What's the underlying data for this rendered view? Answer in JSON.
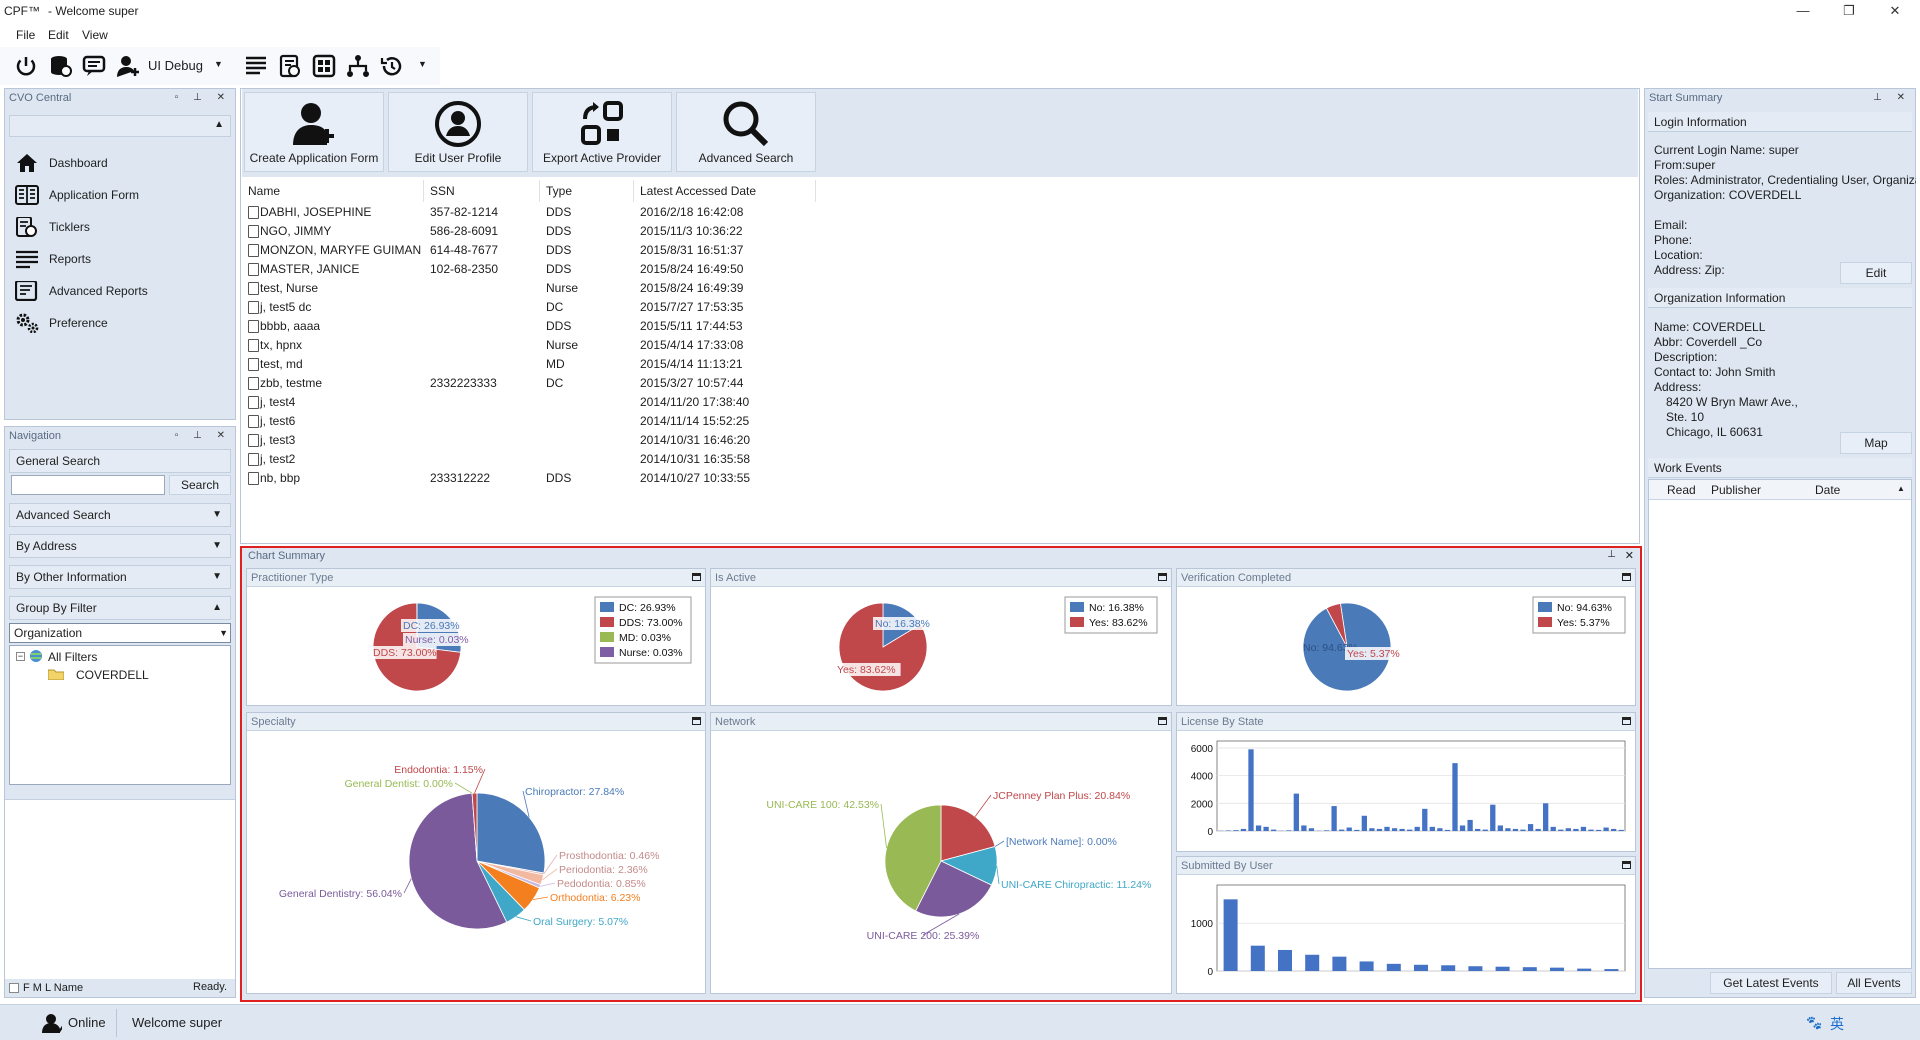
{
  "window": {
    "logo": "CPF™",
    "title": "-  Welcome super",
    "controls": [
      "—",
      "❐",
      "✕"
    ]
  },
  "menu": [
    "File",
    "Edit",
    "View"
  ],
  "toolbar": {
    "debug_label": "UI Debug"
  },
  "cvo": {
    "title": "CVO Central",
    "items": [
      {
        "label": "Dashboard",
        "icon": "home-icon"
      },
      {
        "label": "Application Form",
        "icon": "book-icon"
      },
      {
        "label": "Ticklers",
        "icon": "ticklers-icon"
      },
      {
        "label": "Reports",
        "icon": "reports-icon"
      },
      {
        "label": "Advanced Reports",
        "icon": "advanced-reports-icon"
      },
      {
        "label": "Preference",
        "icon": "gears-icon"
      }
    ]
  },
  "navigation": {
    "title": "Navigation",
    "general_search": "General Search",
    "search_button": "Search",
    "sections": [
      "Advanced Search",
      "By Address",
      "By Other Information",
      "Group By Filter"
    ],
    "group_select": "Organization",
    "tree": [
      "All Filters",
      "COVERDELL"
    ],
    "fml_label": "F M L Name",
    "ready": "Ready."
  },
  "actions": [
    "Create Application Form",
    "Edit User Profile",
    "Export Active Provider",
    "Advanced Search"
  ],
  "grid": {
    "columns": [
      "Name",
      "SSN",
      "Type",
      "Latest Accessed Date"
    ],
    "rows": [
      [
        "DABHI, JOSEPHINE",
        "357-82-1214",
        "DDS",
        "2016/2/18 16:42:08"
      ],
      [
        "NGO, JIMMY",
        "586-28-6091",
        "DDS",
        "2015/11/3 10:36:22"
      ],
      [
        "MONZON, MARYFE GUIMAN",
        "614-48-7677",
        "DDS",
        "2015/8/31 16:51:37"
      ],
      [
        "MASTER, JANICE",
        "102-68-2350",
        "DDS",
        "2015/8/24 16:49:50"
      ],
      [
        "test, Nurse",
        "",
        "Nurse",
        "2015/8/24 16:49:39"
      ],
      [
        "j, test5 dc",
        "",
        "DC",
        "2015/7/27 17:53:35"
      ],
      [
        "bbbb, aaaa",
        "",
        "DDS",
        "2015/5/11 17:44:53"
      ],
      [
        "tx, hpnx",
        "",
        "Nurse",
        "2015/4/14 17:33:08"
      ],
      [
        "test, md",
        "",
        "MD",
        "2015/4/14 11:13:21"
      ],
      [
        "zbb, testme",
        "2332223333",
        "DC",
        "2015/3/27 10:57:44"
      ],
      [
        "j, test4",
        "",
        "",
        "2014/11/20 17:38:40"
      ],
      [
        "j, test6",
        "",
        "",
        "2014/11/14 15:52:25"
      ],
      [
        "j, test3",
        "",
        "",
        "2014/10/31 16:46:20"
      ],
      [
        "j, test2",
        "",
        "",
        "2014/10/31 16:35:58"
      ],
      [
        "nb, bbp",
        "233312222",
        "DDS",
        "2014/10/27 10:33:55"
      ]
    ]
  },
  "chart_summary": {
    "title": "Chart Summary"
  },
  "panels": {
    "practitioner": "Practitioner Type",
    "active": "Is Active",
    "verification": "Verification Completed",
    "specialty": "Specialty",
    "network": "Network",
    "license": "License By State",
    "submitted": "Submitted By User"
  },
  "chart_data": [
    {
      "type": "pie",
      "title": "Practitioner Type",
      "slices": [
        {
          "label": "DC: 26.93%",
          "value": 26.93,
          "color": "#4a7ab8"
        },
        {
          "label": "DDS: 73.00%",
          "value": 73.0,
          "color": "#c0474a"
        },
        {
          "label": "MD: 0.03%",
          "value": 0.03,
          "color": "#98b954"
        },
        {
          "label": "Nurse: 0.03%",
          "value": 0.03,
          "color": "#7e5fa3"
        }
      ]
    },
    {
      "type": "pie",
      "title": "Is Active",
      "slices": [
        {
          "label": "No: 16.38%",
          "value": 16.38,
          "color": "#4a7ab8"
        },
        {
          "label": "Yes: 83.62%",
          "value": 83.62,
          "color": "#c0474a"
        }
      ]
    },
    {
      "type": "pie",
      "title": "Verification Completed",
      "slices": [
        {
          "label": "No: 94.63%",
          "value": 94.63,
          "color": "#4a7ab8"
        },
        {
          "label": "Yes: 5.37%",
          "value": 5.37,
          "color": "#c0474a"
        }
      ]
    },
    {
      "type": "pie",
      "title": "Specialty",
      "slices": [
        {
          "label": "Chiropractor: 27.84%",
          "value": 27.84,
          "color": "#4a7ab8"
        },
        {
          "label": "Prosthodontia: 0.46%",
          "value": 0.46,
          "color": "#e2b3b3"
        },
        {
          "label": "Periodontia: 2.36%",
          "value": 2.36,
          "color": "#f2b8a0"
        },
        {
          "label": "Pedodontia: 0.85%",
          "value": 0.85,
          "color": "#c9b8e0"
        },
        {
          "label": "Orthodontia: 6.23%",
          "value": 6.23,
          "color": "#f47f1f"
        },
        {
          "label": "Oral Surgery: 5.07%",
          "value": 5.07,
          "color": "#3fa7c7"
        },
        {
          "label": "General Dentistry: 56.04%",
          "value": 56.04,
          "color": "#7b5a9c"
        },
        {
          "label": "General Dentist: 0.00%",
          "value": 0.001,
          "color": "#98b954"
        },
        {
          "label": "Endodontia: 1.15%",
          "value": 1.15,
          "color": "#c0474a"
        }
      ]
    },
    {
      "type": "pie",
      "title": "Network",
      "slices": [
        {
          "label": "JCPenney Plan Plus: 20.84%",
          "value": 20.84,
          "color": "#c0474a"
        },
        {
          "label": "[Network Name]: 0.00%",
          "value": 0.001,
          "color": "#4a7ab8"
        },
        {
          "label": "UNI-CARE Chiropractic: 11.24%",
          "value": 11.24,
          "color": "#3fa7c7"
        },
        {
          "label": "UNI-CARE 200: 25.39%",
          "value": 25.39,
          "color": "#7b5a9c"
        },
        {
          "label": "UNI-CARE 100: 42.53%",
          "value": 42.53,
          "color": "#98b954"
        }
      ]
    },
    {
      "type": "bar",
      "title": "License By State",
      "ylim": [
        0,
        6500
      ],
      "yticks": [
        0,
        2000,
        4000,
        6000
      ],
      "values": [
        20,
        40,
        60,
        150,
        5900,
        400,
        300,
        100,
        20,
        50,
        2700,
        400,
        200,
        20,
        50,
        1800,
        100,
        250,
        80,
        1100,
        200,
        150,
        300,
        200,
        150,
        100,
        300,
        1600,
        300,
        200,
        80,
        4900,
        400,
        800,
        150,
        100,
        1900,
        400,
        200,
        150,
        100,
        500,
        150,
        2000,
        300,
        100,
        200,
        150,
        300,
        100,
        80,
        250,
        150,
        80
      ]
    },
    {
      "type": "bar",
      "title": "Submitted By User",
      "ylim": [
        0,
        1800
      ],
      "yticks": [
        0,
        1000
      ],
      "values": [
        1500,
        530,
        440,
        340,
        300,
        200,
        150,
        130,
        120,
        100,
        90,
        80,
        70,
        50,
        40
      ]
    }
  ],
  "start_summary": {
    "title": "Start Summary",
    "login_header": "Login Information",
    "login_lines": [
      "Current Login Name: super",
      "From:super",
      "Roles: Administrator, Credentialing User, Organiza",
      "Organization: COVERDELL",
      "",
      "Email:",
      "Phone:",
      "Location:",
      "Address:  Zip:"
    ],
    "edit": "Edit",
    "org_header": "Organization Information",
    "org_lines": [
      "Name: COVERDELL",
      "Abbr: Coverdell _Co",
      "Description:",
      "Contact to: John Smith",
      "Address:"
    ],
    "org_address": [
      "8420 W Bryn Mawr Ave.,",
      "Ste. 10",
      "Chicago, IL 60631"
    ],
    "map": "Map",
    "work_header": "Work Events",
    "work_columns": [
      "Read",
      "Publisher",
      "Date"
    ],
    "latest": "Get Latest Events",
    "all": "All Events"
  },
  "status": {
    "online": "Online",
    "welcome": "Welcome super",
    "ime": "英"
  }
}
